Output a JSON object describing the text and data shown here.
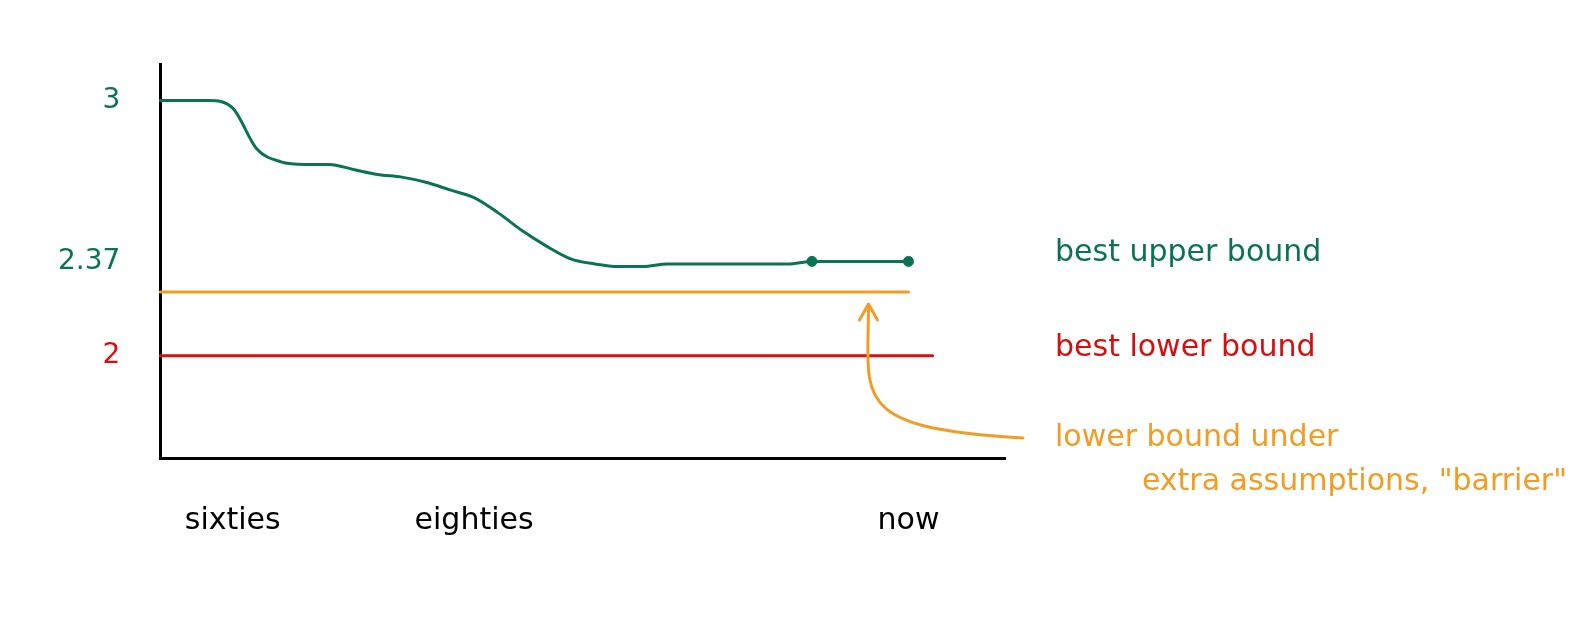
{
  "chart_data": {
    "type": "line",
    "categories": [
      null,
      null,
      null,
      "sixties",
      null,
      null,
      null,
      null,
      null,
      null,
      null,
      null,
      null,
      "eighties",
      null,
      null,
      null,
      null,
      null,
      null,
      null,
      null,
      null,
      null,
      null,
      null,
      null,
      null,
      null,
      null,
      null,
      "now",
      null,
      null,
      null,
      null
    ],
    "ylim": [
      1.6,
      3.14
    ],
    "yticks": [
      2,
      2.37,
      3
    ],
    "grid": false,
    "legend": false,
    "marker": "none",
    "line_style": "solid",
    "series": [
      {
        "name": "best upper bound",
        "color": "#0b7355",
        "values": [
          3.0,
          3.0,
          3.0,
          2.97,
          2.81,
          2.76,
          2.75,
          2.75,
          2.73,
          2.71,
          2.7,
          2.68,
          2.65,
          2.62,
          2.56,
          2.49,
          2.43,
          2.38,
          2.36,
          2.35,
          2.35,
          2.36,
          2.36,
          2.36,
          2.36,
          2.36,
          2.36,
          2.37,
          2.37,
          2.37,
          2.37,
          2.37,
          null,
          null,
          null,
          null
        ]
      },
      {
        "type": "scatter",
        "color": "#0b7355",
        "marker": "circle",
        "values": [
          null,
          null,
          null,
          null,
          null,
          null,
          null,
          null,
          null,
          null,
          null,
          null,
          null,
          null,
          null,
          null,
          null,
          null,
          null,
          null,
          null,
          null,
          null,
          null,
          null,
          null,
          null,
          2.37,
          null,
          null,
          null,
          2.37,
          null,
          null,
          null,
          null
        ]
      },
      {
        "name": "lower bound under extra assumptions, \"barrier\"",
        "color": "#f39c24",
        "values": [
          2.25,
          2.25,
          2.25,
          2.25,
          2.25,
          2.25,
          2.25,
          2.25,
          2.25,
          2.25,
          2.25,
          2.25,
          2.25,
          2.25,
          2.25,
          2.25,
          2.25,
          2.25,
          2.25,
          2.25,
          2.25,
          2.25,
          2.25,
          2.25,
          2.25,
          2.25,
          2.25,
          2.25,
          2.25,
          2.25,
          2.25,
          2.25,
          null,
          null,
          null,
          null
        ]
      },
      {
        "name": "best lower bound",
        "color": "#d90f0f",
        "values": [
          2.0,
          2.0,
          2.0,
          2.0,
          2.0,
          2.0,
          2.0,
          2.0,
          2.0,
          2.0,
          2.0,
          2.0,
          2.0,
          2.0,
          2.0,
          2.0,
          2.0,
          2.0,
          2.0,
          2.0,
          2.0,
          2.0,
          2.0,
          2.0,
          2.0,
          2.0,
          2.0,
          2.0,
          2.0,
          2.0,
          2.0,
          2.0,
          2.0,
          null,
          null,
          null
        ]
      }
    ]
  }
}
